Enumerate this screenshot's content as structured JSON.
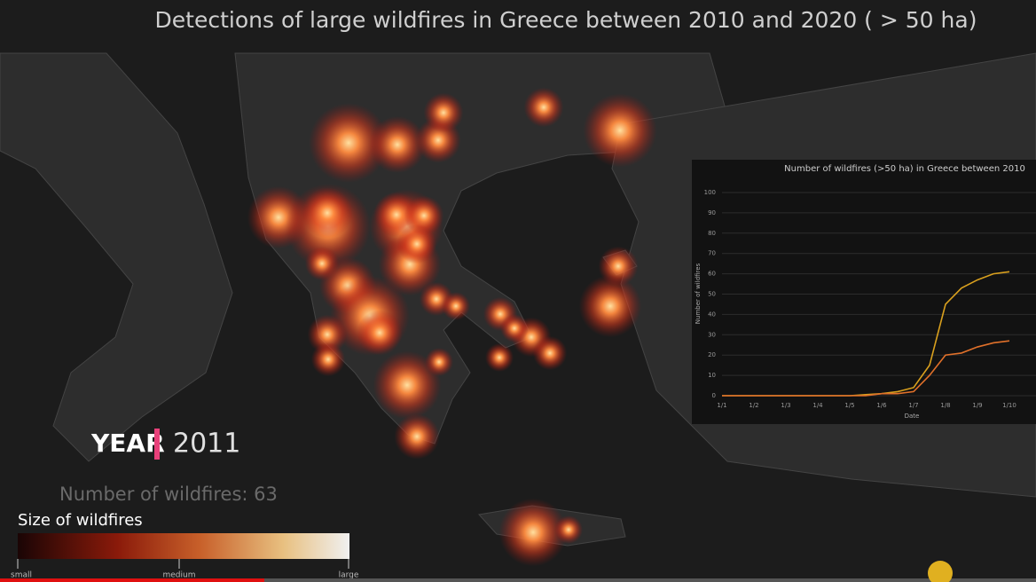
{
  "title": "Detections of large wildfires in Greece between 2010 and 2020 ( > 50 ha)",
  "year_label": "YEAR",
  "year": "2011",
  "wildfire_count": "Number of wildfires: 63",
  "legend": {
    "title": "Size of wildfires",
    "labels": [
      "small",
      "medium",
      "large"
    ]
  },
  "chart_data": {
    "type": "line",
    "title": "Number of wildfires (>50 ha) in Greece between 2010",
    "x_label": "Date",
    "y_label": "Number of wildfires",
    "categories": [
      "1/1",
      null,
      "1/2",
      null,
      "1/3",
      null,
      "1/4",
      null,
      "1/5",
      null,
      "1/6",
      null,
      "1/7",
      null,
      "1/8",
      null,
      "1/9",
      null,
      "1/10"
    ],
    "series": [
      {
        "color": "#d9a01e",
        "values": [
          0,
          0,
          0,
          0,
          0,
          0,
          0,
          0,
          0,
          0.5,
          1,
          2,
          4,
          15,
          45,
          53,
          57,
          60,
          61
        ]
      },
      {
        "color": "#e0702a",
        "values": [
          0,
          0,
          0,
          0,
          0,
          0,
          0,
          0,
          0,
          0,
          1,
          1,
          2,
          10,
          20,
          21,
          24,
          26,
          27
        ]
      }
    ],
    "ylim": [
      0,
      100
    ],
    "yticks": [
      0,
      10,
      20,
      30,
      40,
      50,
      60,
      70,
      80,
      90,
      100
    ],
    "grid": true
  }
}
